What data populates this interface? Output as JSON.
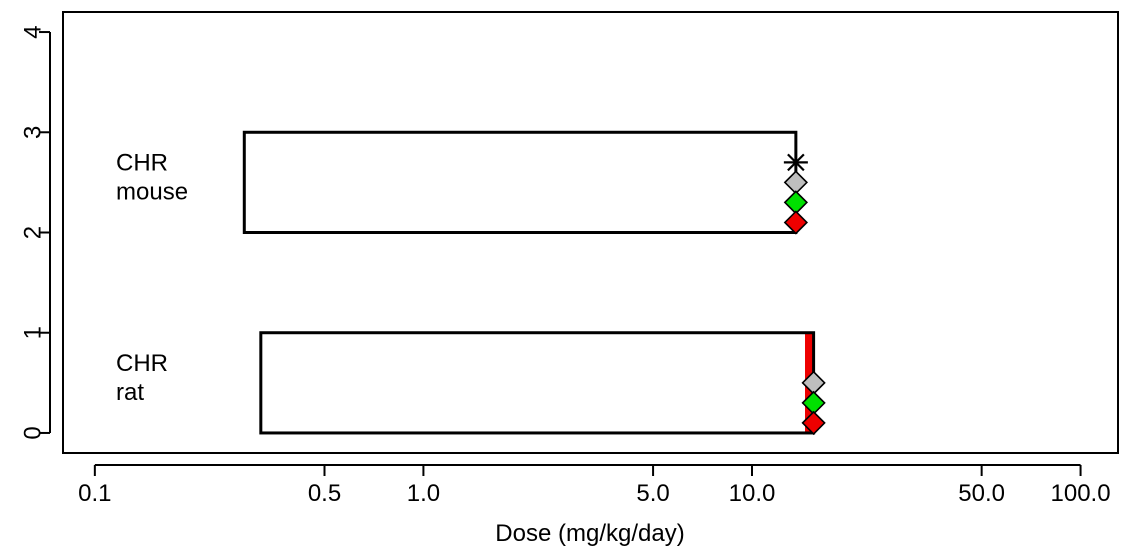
{
  "chart_data": {
    "type": "range-bar",
    "title": "",
    "xlabel": "Dose (mg/kg/day)",
    "ylabel": "",
    "xscale": "log",
    "xlim": [
      0.08,
      130
    ],
    "ylim": [
      -0.2,
      4.2
    ],
    "x_ticks": [
      {
        "value": 0.1,
        "label": "0.1"
      },
      {
        "value": 0.5,
        "label": "0.5"
      },
      {
        "value": 1.0,
        "label": "1.0"
      },
      {
        "value": 5.0,
        "label": "5.0"
      },
      {
        "value": 10.0,
        "label": "10.0"
      },
      {
        "value": 50.0,
        "label": "50.0"
      },
      {
        "value": 100.0,
        "label": "100.0"
      }
    ],
    "y_ticks": [
      {
        "value": 0,
        "label": "0"
      },
      {
        "value": 1,
        "label": "1"
      },
      {
        "value": 2,
        "label": "2"
      },
      {
        "value": 3,
        "label": "3"
      },
      {
        "value": 4,
        "label": "4"
      }
    ],
    "grid": false,
    "rows": [
      {
        "label_line1": "CHR",
        "label_line2": "mouse",
        "label_y": 2.5,
        "box": {
          "x_min": 0.285,
          "x_max": 13.6,
          "y_min": 2,
          "y_max": 3
        },
        "band": null,
        "markers": [
          {
            "shape": "star",
            "x": 13.6,
            "y": 2.7,
            "color": "#000000"
          },
          {
            "shape": "diamond",
            "x": 13.6,
            "y": 2.5,
            "color": "#bebebe"
          },
          {
            "shape": "diamond",
            "x": 13.6,
            "y": 2.3,
            "color": "#00e000"
          },
          {
            "shape": "diamond",
            "x": 13.6,
            "y": 2.1,
            "color": "#ee0000"
          }
        ]
      },
      {
        "label_line1": "CHR",
        "label_line2": "rat",
        "label_y": 0.5,
        "box": {
          "x_min": 0.32,
          "x_max": 15.4,
          "y_min": 0,
          "y_max": 1
        },
        "band": {
          "x_min": 14.5,
          "x_max": 15.4,
          "color": "#ee0000"
        },
        "markers": [
          {
            "shape": "diamond",
            "x": 15.4,
            "y": 0.5,
            "color": "#bebebe"
          },
          {
            "shape": "diamond",
            "x": 15.4,
            "y": 0.3,
            "color": "#00e000"
          },
          {
            "shape": "diamond",
            "x": 15.4,
            "y": 0.1,
            "color": "#ee0000"
          }
        ]
      }
    ]
  }
}
